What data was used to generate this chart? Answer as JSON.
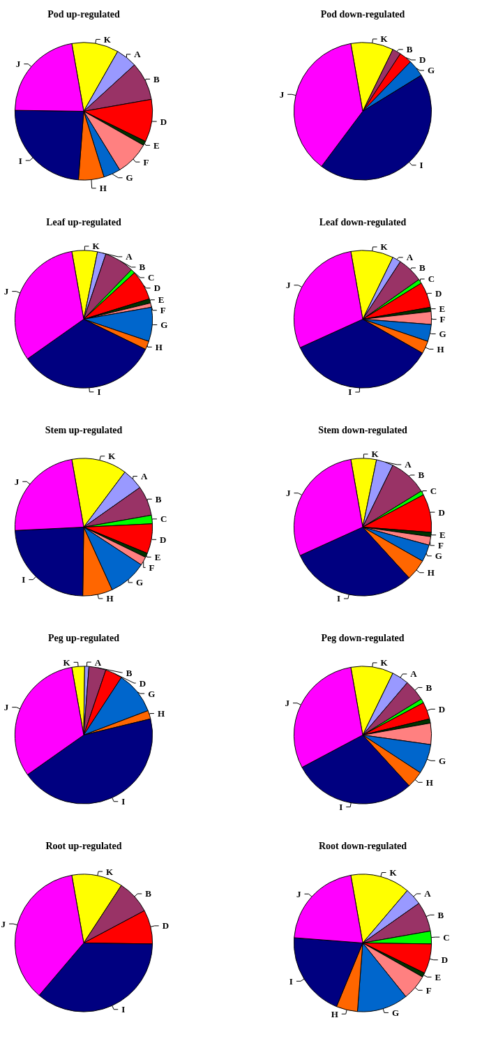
{
  "chart_data": [
    {
      "type": "pie",
      "title": "Pod up-regulated",
      "categories": [
        "K",
        "A",
        "B",
        "D",
        "E",
        "F",
        "G",
        "H",
        "I",
        "J"
      ],
      "values": [
        11,
        5,
        9,
        10,
        1,
        8,
        4,
        6,
        24,
        22
      ],
      "colors": [
        "#ffff00",
        "#9999ff",
        "#993366",
        "#ff0000",
        "#003300",
        "#ff8080",
        "#0066cc",
        "#ff6600",
        "#000080",
        "#ff00ff"
      ]
    },
    {
      "type": "pie",
      "title": "Pod down-regulated",
      "categories": [
        "K",
        "B",
        "D",
        "G",
        "I",
        "J"
      ],
      "values": [
        10,
        2,
        3,
        4,
        44,
        37
      ],
      "colors": [
        "#ffff00",
        "#993366",
        "#ff0000",
        "#0066cc",
        "#000080",
        "#ff00ff"
      ]
    },
    {
      "type": "pie",
      "title": "Leaf up-regulated",
      "categories": [
        "K",
        "A",
        "B",
        "C",
        "D",
        "E",
        "F",
        "G",
        "H",
        "I",
        "J"
      ],
      "values": [
        6,
        2,
        7,
        1,
        7,
        1,
        1,
        8,
        2,
        33,
        32
      ],
      "colors": [
        "#ffff00",
        "#9999ff",
        "#993366",
        "#00ff00",
        "#ff0000",
        "#003300",
        "#ff8080",
        "#0066cc",
        "#ff6600",
        "#000080",
        "#ff00ff"
      ]
    },
    {
      "type": "pie",
      "title": "Leaf down-regulated",
      "categories": [
        "K",
        "A",
        "B",
        "C",
        "D",
        "E",
        "F",
        "G",
        "H",
        "I",
        "J"
      ],
      "values": [
        10,
        2,
        6,
        1,
        6,
        1,
        3,
        4,
        3,
        35,
        29
      ],
      "colors": [
        "#ffff00",
        "#9999ff",
        "#993366",
        "#00ff00",
        "#ff0000",
        "#003300",
        "#ff8080",
        "#0066cc",
        "#ff6600",
        "#000080",
        "#ff00ff"
      ]
    },
    {
      "type": "pie",
      "title": "Stem up-regulated",
      "categories": [
        "K",
        "A",
        "B",
        "C",
        "D",
        "E",
        "F",
        "G",
        "H",
        "I",
        "J"
      ],
      "values": [
        13,
        5,
        7,
        2,
        7,
        1,
        2,
        9,
        7,
        24,
        23
      ],
      "colors": [
        "#ffff00",
        "#9999ff",
        "#993366",
        "#00ff00",
        "#ff0000",
        "#003300",
        "#ff8080",
        "#0066cc",
        "#ff6600",
        "#000080",
        "#ff00ff"
      ]
    },
    {
      "type": "pie",
      "title": "Stem down-regulated",
      "categories": [
        "K",
        "A",
        "B",
        "C",
        "D",
        "E",
        "F",
        "G",
        "H",
        "I",
        "J"
      ],
      "values": [
        6,
        4,
        9,
        1,
        9,
        1,
        2,
        4,
        5,
        30,
        29
      ],
      "colors": [
        "#ffff00",
        "#9999ff",
        "#993366",
        "#00ff00",
        "#ff0000",
        "#003300",
        "#ff8080",
        "#0066cc",
        "#ff6600",
        "#000080",
        "#ff00ff"
      ]
    },
    {
      "type": "pie",
      "title": "Peg up-regulated",
      "categories": [
        "K",
        "A",
        "B",
        "D",
        "G",
        "H",
        "I",
        "J"
      ],
      "values": [
        3,
        1,
        4,
        4,
        10,
        2,
        44,
        32
      ],
      "colors": [
        "#ffff00",
        "#9999ff",
        "#993366",
        "#ff0000",
        "#0066cc",
        "#ff6600",
        "#000080",
        "#ff00ff"
      ]
    },
    {
      "type": "pie",
      "title": "Peg down-regulated",
      "categories": [
        "K",
        "A",
        "B",
        null,
        "D",
        null,
        null,
        "G",
        "H",
        "I",
        "J"
      ],
      "values": [
        10,
        4,
        5,
        1,
        4,
        1,
        5,
        7,
        4,
        29,
        30
      ],
      "colors": [
        "#ffff00",
        "#9999ff",
        "#993366",
        "#00ff00",
        "#ff0000",
        "#003300",
        "#ff8080",
        "#0066cc",
        "#ff6600",
        "#000080",
        "#ff00ff"
      ]
    },
    {
      "type": "pie",
      "title": "Root up-regulated",
      "categories": [
        "K",
        "B",
        "D",
        "I",
        "J"
      ],
      "values": [
        12,
        8,
        8,
        36,
        36
      ],
      "colors": [
        "#ffff00",
        "#993366",
        "#ff0000",
        "#000080",
        "#ff00ff"
      ]
    },
    {
      "type": "pie",
      "title": "Root down-regulated",
      "categories": [
        "K",
        "A",
        "B",
        "C",
        "D",
        "E",
        "F",
        "G",
        "H",
        "I",
        "J"
      ],
      "values": [
        14,
        4,
        7,
        3,
        7,
        1,
        6,
        12,
        5,
        20,
        21
      ],
      "colors": [
        "#ffff00",
        "#9999ff",
        "#993366",
        "#00ff00",
        "#ff0000",
        "#003300",
        "#ff8080",
        "#0066cc",
        "#ff6600",
        "#000080",
        "#ff00ff"
      ]
    }
  ]
}
